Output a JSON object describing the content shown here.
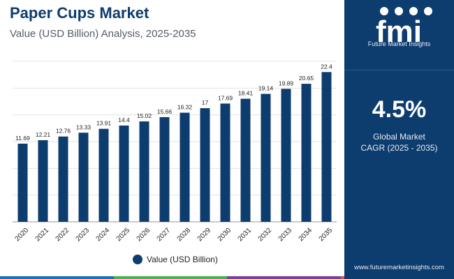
{
  "header": {
    "title": "Paper Cups Market",
    "subtitle": "Value (USD Billion) Analysis, 2025-2035"
  },
  "colors": {
    "bar": "#0d3c6e",
    "panel": "#0d3c6e",
    "strip": [
      "#1f6fb2",
      "#4caf50",
      "#7b3fa0",
      "#d9534f"
    ]
  },
  "chart_data": {
    "type": "bar",
    "title": "Paper Cups Market",
    "subtitle": "Value (USD Billion) Analysis, 2025-2035",
    "categories": [
      "2020",
      "2021",
      "2022",
      "2023",
      "2024",
      "2025",
      "2026",
      "2027",
      "2028",
      "2029",
      "2030",
      "2031",
      "2032",
      "2033",
      "2034",
      "2035"
    ],
    "series": [
      {
        "name": "Value (USD Billion)",
        "values": [
          11.69,
          12.21,
          12.76,
          13.33,
          13.91,
          14.4,
          15.02,
          15.66,
          16.32,
          17,
          17.69,
          18.41,
          19.14,
          19.89,
          20.65,
          22.4
        ]
      }
    ],
    "ylim": [
      0,
      24
    ],
    "grid": true,
    "legend": "bottom-center"
  },
  "side_panel": {
    "logo_text": "fmi",
    "logo_subtitle": "Future Market Insights",
    "cagr_value": "4.5%",
    "cagr_label_line1": "Global Market",
    "cagr_label_line2": "CAGR (2025 - 2035)",
    "website": "www.futuremarketinsights.com"
  }
}
